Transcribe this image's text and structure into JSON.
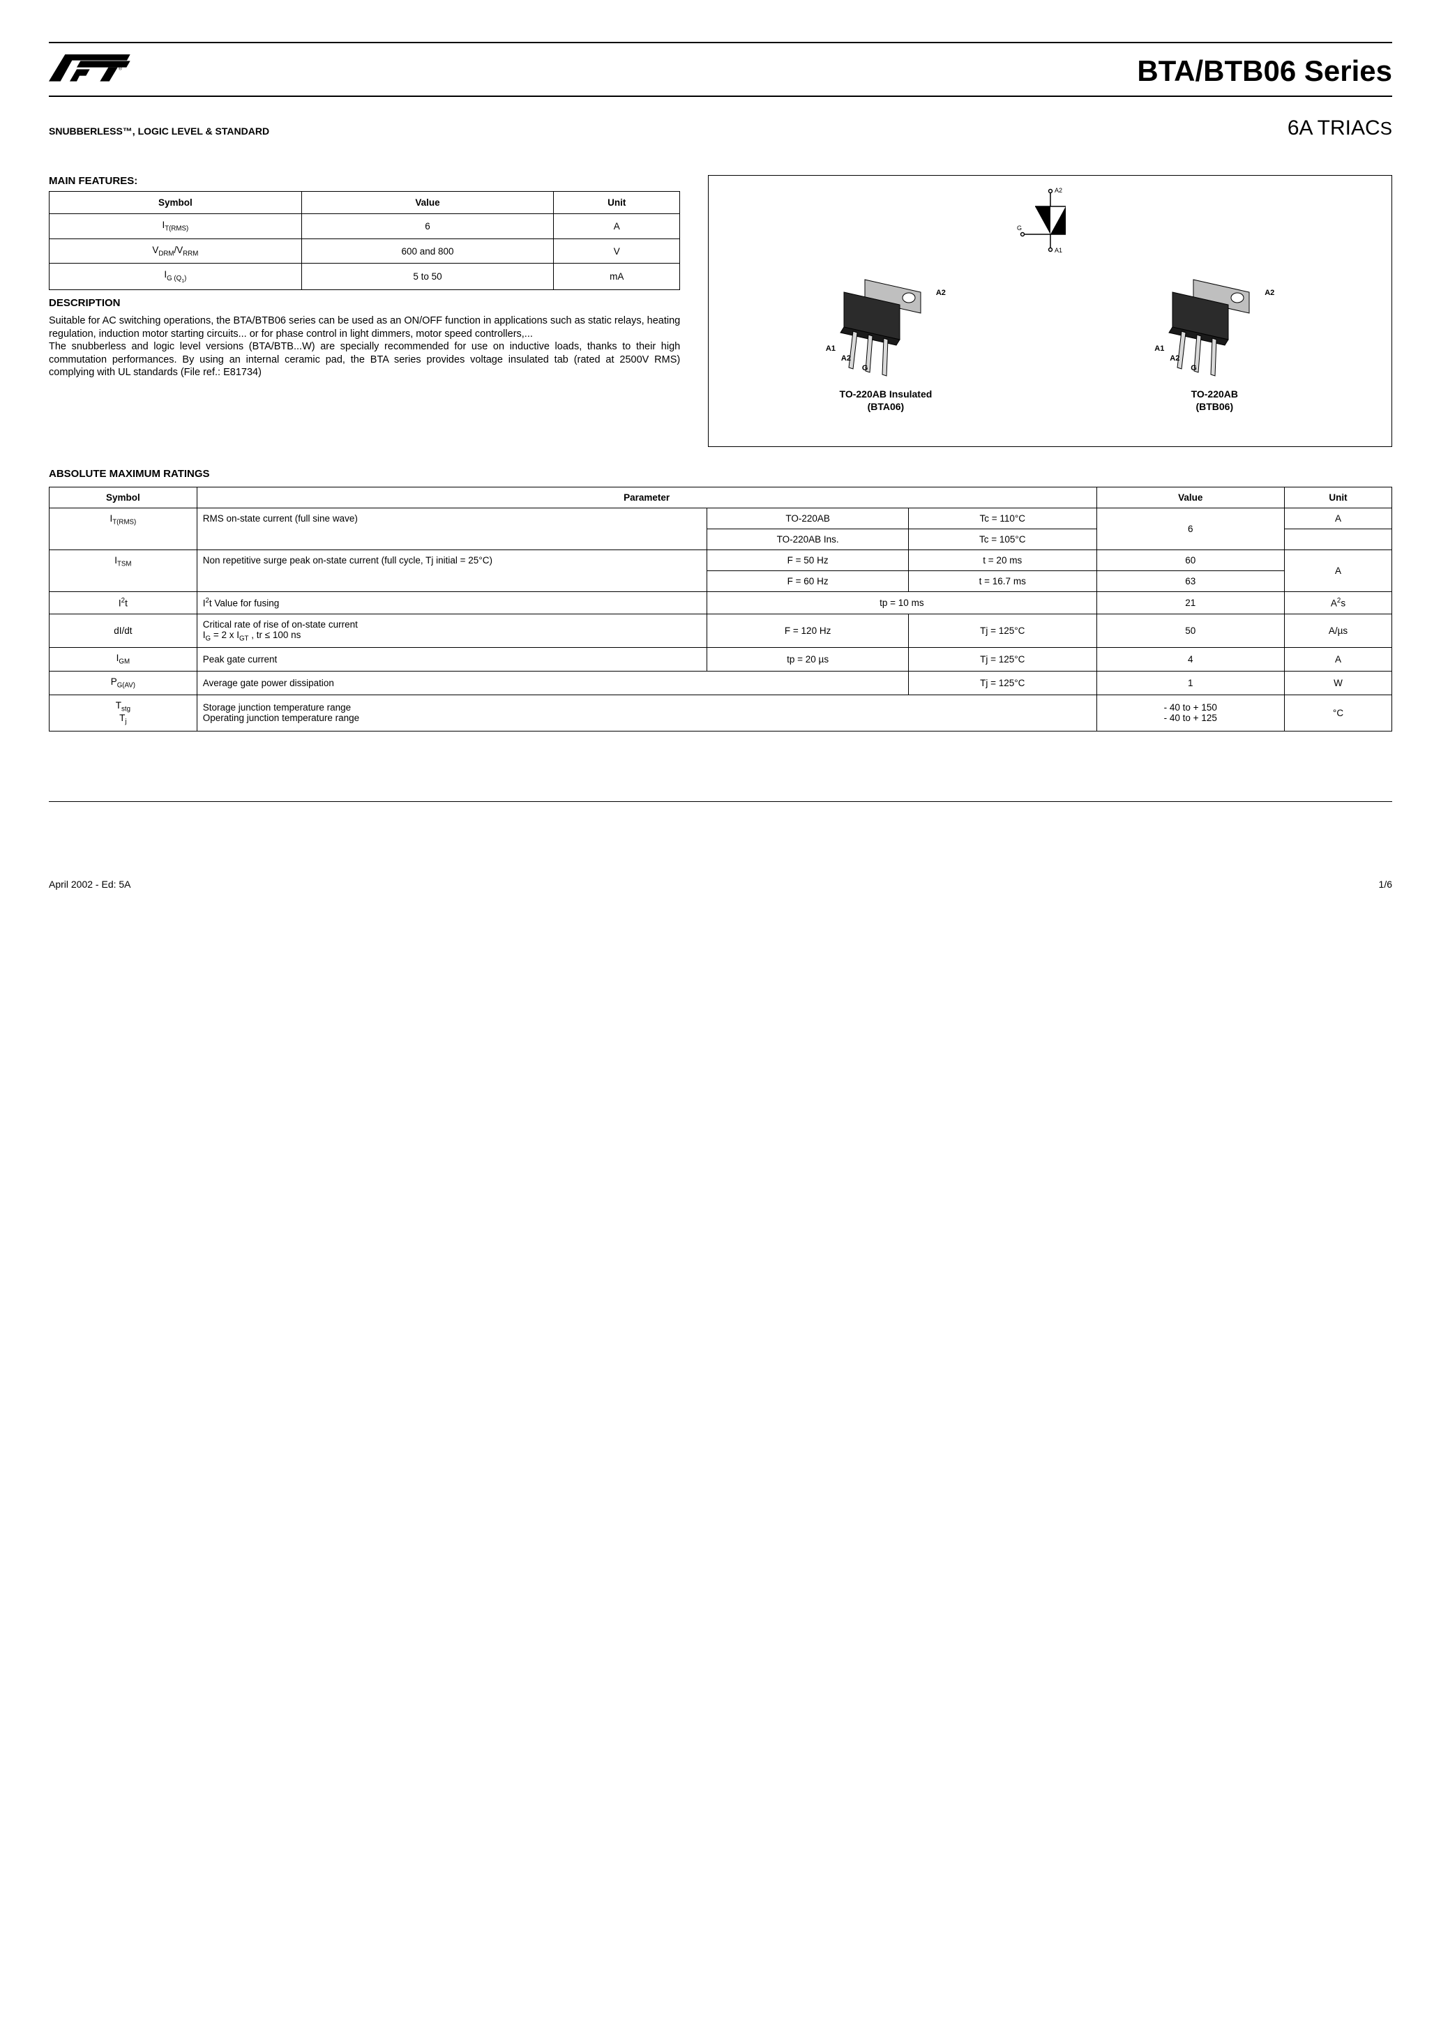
{
  "header": {
    "title": "BTA/BTB06 Series",
    "subtitle_left": "SNUBBERLESS™, LOGIC LEVEL & STANDARD",
    "subtitle_right_prefix": "6A TRIAC",
    "subtitle_right_suffix": "S"
  },
  "main_features": {
    "heading": "MAIN FEATURES:",
    "columns": [
      "Symbol",
      "Value",
      "Unit"
    ],
    "rows": [
      {
        "symbol_html": "I<sub>T(RMS)</sub>",
        "value": "6",
        "unit": "A"
      },
      {
        "symbol_html": "V<sub>DRM</sub>/V<sub>RRM</sub>",
        "value": "600 and 800",
        "unit": "V"
      },
      {
        "symbol_html": "I<sub>G (Q<sub>1</sub>)</sub>",
        "value": "5 to 50",
        "unit": "mA"
      }
    ]
  },
  "description": {
    "heading": "DESCRIPTION",
    "text": "Suitable for AC switching operations, the BTA/BTB06 series can be used as an ON/OFF function in applications such as static relays, heating regulation, induction motor starting circuits... or for phase control in light dimmers, motor speed controllers,...\nThe snubberless and logic level versions (BTA/BTB...W) are specially recommended for use on inductive loads, thanks to their high commutation performances. By using an internal ceramic pad, the BTA series provides voltage insulated tab (rated at 2500V RMS) complying with UL standards (File ref.: E81734)"
  },
  "packages": {
    "pin_a2": "A2",
    "pin_a1": "A1",
    "pin_g": "G",
    "items": [
      {
        "label_line1": "TO-220AB Insulated",
        "label_line2": "(BTA06)"
      },
      {
        "label_line1": "TO-220AB",
        "label_line2": "(BTB06)"
      }
    ]
  },
  "amr": {
    "heading": "ABSOLUTE MAXIMUM RATINGS",
    "columns": [
      "Symbol",
      "Parameter",
      "Value",
      "Unit"
    ],
    "rows": [
      {
        "symbol_html": "I<sub>T(RMS)</sub>",
        "param": "RMS on-state current (full sine wave)",
        "cond1a": "TO-220AB",
        "cond1b": "Tc = 110°C",
        "cond2a": "TO-220AB Ins.",
        "cond2b": "Tc = 105°C",
        "value": "6",
        "unit": "A"
      },
      {
        "symbol_html": "I<sub>TSM</sub>",
        "param": "Non repetitive surge peak on-state current  (full cycle, Tj initial = 25°C)",
        "cond1a": "F = 50 Hz",
        "cond1b": "t = 20 ms",
        "value1": "60",
        "cond2a": "F = 60 Hz",
        "cond2b": "t = 16.7 ms",
        "value2": "63",
        "unit": "A"
      },
      {
        "symbol_html": "I<sup>2</sup>t",
        "param_html": "I<sup>2</sup>t Value for fusing",
        "cond": "tp = 10 ms",
        "value": "21",
        "unit_html": "A<sup>2</sup>s"
      },
      {
        "symbol_html": "dI/dt",
        "param_html": "Critical rate of rise of on-state current<br>I<sub>G</sub> = 2 x I<sub>GT</sub> , tr ≤ 100 ns",
        "cond1": "F = 120 Hz",
        "cond2": "Tj = 125°C",
        "value": "50",
        "unit": "A/µs"
      },
      {
        "symbol_html": "I<sub>GM</sub>",
        "param": "Peak gate current",
        "cond1": "tp = 20 µs",
        "cond2": "Tj = 125°C",
        "value": "4",
        "unit": "A"
      },
      {
        "symbol_html": "P<sub>G(AV)</sub>",
        "param": "Average gate power dissipation",
        "cond": "Tj = 125°C",
        "value": "1",
        "unit": "W"
      },
      {
        "symbol_html": "T<sub>stg</sub><br>T<sub>j</sub>",
        "param": "Storage junction temperature range\nOperating junction temperature range",
        "value": "- 40 to + 150\n- 40 to + 125",
        "unit": "°C"
      }
    ]
  },
  "footer": {
    "left": "April 2002 - Ed: 5A",
    "right": "1/6"
  },
  "colors": {
    "text": "#000000",
    "background": "#ffffff",
    "border": "#000000",
    "pkg_body": "#2b2b2b",
    "pkg_tab": "#bfbfbf",
    "pkg_lead": "#d9d9d9"
  }
}
